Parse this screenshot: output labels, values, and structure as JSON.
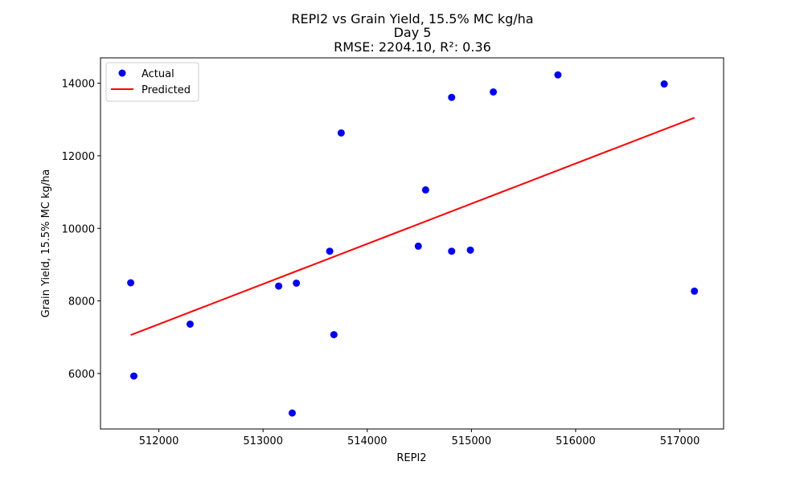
{
  "chart_data": {
    "type": "scatter",
    "title": "REPI2 vs Grain Yield, 15.5% MC kg/ha",
    "subtitle": "Day 5",
    "metrics": "RMSE: 2204.10, R²: 0.36",
    "xlabel": "REPI2",
    "ylabel": "Grain Yield, 15.5% MC kg/ha",
    "xlim": [
      511440,
      517420
    ],
    "ylim": [
      4470,
      14700
    ],
    "xticks": [
      512000,
      513000,
      514000,
      515000,
      516000,
      517000
    ],
    "yticks": [
      6000,
      8000,
      10000,
      12000,
      14000
    ],
    "grid": false,
    "legend": {
      "placement": "top-left",
      "entries": [
        "Actual",
        "Predicted"
      ]
    },
    "colors": {
      "actual": "#0000ff",
      "predicted": "#ff0000"
    },
    "series": [
      {
        "name": "Actual",
        "kind": "scatter",
        "points": [
          [
            511730,
            8500
          ],
          [
            511760,
            5930
          ],
          [
            512300,
            7360
          ],
          [
            513150,
            8410
          ],
          [
            513320,
            8490
          ],
          [
            513280,
            4910
          ],
          [
            513640,
            9370
          ],
          [
            513680,
            7070
          ],
          [
            513750,
            12630
          ],
          [
            514490,
            9510
          ],
          [
            514560,
            11060
          ],
          [
            514810,
            9370
          ],
          [
            514810,
            13610
          ],
          [
            514990,
            9400
          ],
          [
            515210,
            13760
          ],
          [
            515830,
            14230
          ],
          [
            516850,
            13980
          ],
          [
            517140,
            8270
          ]
        ]
      },
      {
        "name": "Predicted",
        "kind": "line",
        "points": [
          [
            511730,
            7060
          ],
          [
            517140,
            13050
          ]
        ]
      }
    ]
  }
}
